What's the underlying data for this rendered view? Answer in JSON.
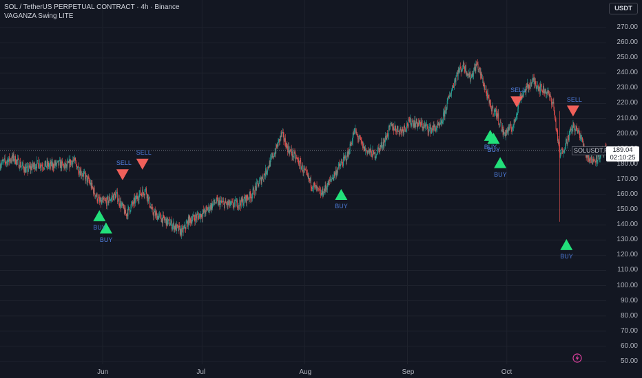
{
  "header": {
    "title": "SOL / TetherUS PERPETUAL CONTRACT · 4h · Binance",
    "indicator": "VAGANZA Swing LITE"
  },
  "currency_button": "USDT",
  "current_price": {
    "symbol": "SOLUSDT.P",
    "price": "189.04",
    "countdown": "02:10:25",
    "value": 189.04
  },
  "colors": {
    "background": "#131722",
    "up": "#26a69a",
    "down": "#ef5350",
    "buy": "#22e07a",
    "sell": "#f0605a",
    "signal_text": "#4e7bd9"
  },
  "icons": {
    "replay": "lightning-circle-icon"
  },
  "chart_data": {
    "type": "candlestick",
    "title": "SOL / TetherUS PERPETUAL CONTRACT · 4h · Binance",
    "timeframe": "4h",
    "ylim": [
      45,
      282
    ],
    "y_ticks": [
      {
        "label": "270.00",
        "value": 270
      },
      {
        "label": "260.00",
        "value": 260
      },
      {
        "label": "250.00",
        "value": 250
      },
      {
        "label": "240.00",
        "value": 240
      },
      {
        "label": "230.00",
        "value": 230
      },
      {
        "label": "220.00",
        "value": 220
      },
      {
        "label": "210.00",
        "value": 210
      },
      {
        "label": "200.00",
        "value": 200
      },
      {
        "label": "190.00",
        "value": 190
      },
      {
        "label": "180.00",
        "value": 180
      },
      {
        "label": "170.00",
        "value": 170
      },
      {
        "label": "160.00",
        "value": 160
      },
      {
        "label": "150.00",
        "value": 150
      },
      {
        "label": "140.00",
        "value": 140
      },
      {
        "label": "130.00",
        "value": 130
      },
      {
        "label": "120.00",
        "value": 120
      },
      {
        "label": "110.00",
        "value": 110
      },
      {
        "label": "100.00",
        "value": 100
      },
      {
        "label": "90.00",
        "value": 90
      },
      {
        "label": "80.00",
        "value": 80
      },
      {
        "label": "70.00",
        "value": 70
      },
      {
        "label": "60.00",
        "value": 60
      },
      {
        "label": "50.00",
        "value": 50
      }
    ],
    "x_range": [
      "2025-05-01",
      "2025-10-31"
    ],
    "x_ticks": [
      {
        "label": "Jun",
        "date": "2025-06-01"
      },
      {
        "label": "Jul",
        "date": "2025-07-01"
      },
      {
        "label": "Aug",
        "date": "2025-08-01"
      },
      {
        "label": "Sep",
        "date": "2025-09-01"
      },
      {
        "label": "Oct",
        "date": "2025-10-01"
      }
    ],
    "price_path": [
      [
        "2025-05-01",
        180
      ],
      [
        "2025-05-05",
        184
      ],
      [
        "2025-05-09",
        176
      ],
      [
        "2025-05-12",
        180
      ],
      [
        "2025-05-16",
        179
      ],
      [
        "2025-05-19",
        180
      ],
      [
        "2025-05-21",
        178
      ],
      [
        "2025-05-23",
        183
      ],
      [
        "2025-05-25",
        176
      ],
      [
        "2025-05-28",
        168
      ],
      [
        "2025-05-31",
        155
      ],
      [
        "2025-06-02",
        155
      ],
      [
        "2025-06-05",
        160
      ],
      [
        "2025-06-08",
        147
      ],
      [
        "2025-06-12",
        160
      ],
      [
        "2025-06-14",
        163
      ],
      [
        "2025-06-16",
        148
      ],
      [
        "2025-06-19",
        144
      ],
      [
        "2025-06-22",
        140
      ],
      [
        "2025-06-25",
        135
      ],
      [
        "2025-06-27",
        143
      ],
      [
        "2025-07-01",
        147
      ],
      [
        "2025-07-05",
        155
      ],
      [
        "2025-07-10",
        153
      ],
      [
        "2025-07-13",
        155
      ],
      [
        "2025-07-16",
        160
      ],
      [
        "2025-07-20",
        174
      ],
      [
        "2025-07-23",
        188
      ],
      [
        "2025-07-25",
        200
      ],
      [
        "2025-07-27",
        190
      ],
      [
        "2025-07-30",
        182
      ],
      [
        "2025-08-03",
        167
      ],
      [
        "2025-08-06",
        160
      ],
      [
        "2025-08-09",
        170
      ],
      [
        "2025-08-11",
        177
      ],
      [
        "2025-08-14",
        186
      ],
      [
        "2025-08-16",
        202
      ],
      [
        "2025-08-19",
        190
      ],
      [
        "2025-08-22",
        186
      ],
      [
        "2025-08-25",
        195
      ],
      [
        "2025-08-27",
        205
      ],
      [
        "2025-08-30",
        202
      ],
      [
        "2025-09-02",
        208
      ],
      [
        "2025-09-05",
        206
      ],
      [
        "2025-09-08",
        203
      ],
      [
        "2025-09-11",
        205
      ],
      [
        "2025-09-13",
        220
      ],
      [
        "2025-09-16",
        240
      ],
      [
        "2025-09-18",
        245
      ],
      [
        "2025-09-20",
        237
      ],
      [
        "2025-09-22",
        246
      ],
      [
        "2025-09-24",
        233
      ],
      [
        "2025-09-26",
        218
      ],
      [
        "2025-09-28",
        213
      ],
      [
        "2025-09-30",
        200
      ],
      [
        "2025-10-03",
        205
      ],
      [
        "2025-10-05",
        224
      ],
      [
        "2025-10-07",
        230
      ],
      [
        "2025-10-09",
        235
      ],
      [
        "2025-10-11",
        230
      ],
      [
        "2025-10-13",
        228
      ],
      [
        "2025-10-15",
        220
      ],
      [
        "2025-10-17",
        185
      ],
      [
        "2025-10-19",
        195
      ],
      [
        "2025-10-21",
        205
      ],
      [
        "2025-10-23",
        200
      ],
      [
        "2025-10-25",
        186
      ],
      [
        "2025-10-27",
        182
      ],
      [
        "2025-10-29",
        186
      ],
      [
        "2025-10-31",
        189
      ]
    ],
    "spike_low": {
      "date": "2025-10-17",
      "high": 215,
      "low": 142
    },
    "signals": [
      {
        "type": "buy",
        "date": "2025-05-31",
        "price": 146,
        "label": "BUY"
      },
      {
        "type": "buy",
        "date": "2025-06-02",
        "price": 138,
        "label": "BUY"
      },
      {
        "type": "sell",
        "date": "2025-06-07",
        "price": 173,
        "label": "SELL"
      },
      {
        "type": "sell",
        "date": "2025-06-13",
        "price": 180,
        "label": "SELL"
      },
      {
        "type": "buy",
        "date": "2025-08-12",
        "price": 160,
        "label": "BUY"
      },
      {
        "type": "buy",
        "date": "2025-09-26",
        "price": 199,
        "label": "BUY"
      },
      {
        "type": "buy",
        "date": "2025-09-27",
        "price": 197,
        "label": "BUY"
      },
      {
        "type": "buy",
        "date": "2025-09-29",
        "price": 181,
        "label": "BUY"
      },
      {
        "type": "sell",
        "date": "2025-10-04",
        "price": 221,
        "label": "SELL"
      },
      {
        "type": "buy",
        "date": "2025-10-19",
        "price": 127,
        "label": "BUY"
      },
      {
        "type": "sell",
        "date": "2025-10-21",
        "price": 215,
        "label": "SELL"
      }
    ]
  }
}
